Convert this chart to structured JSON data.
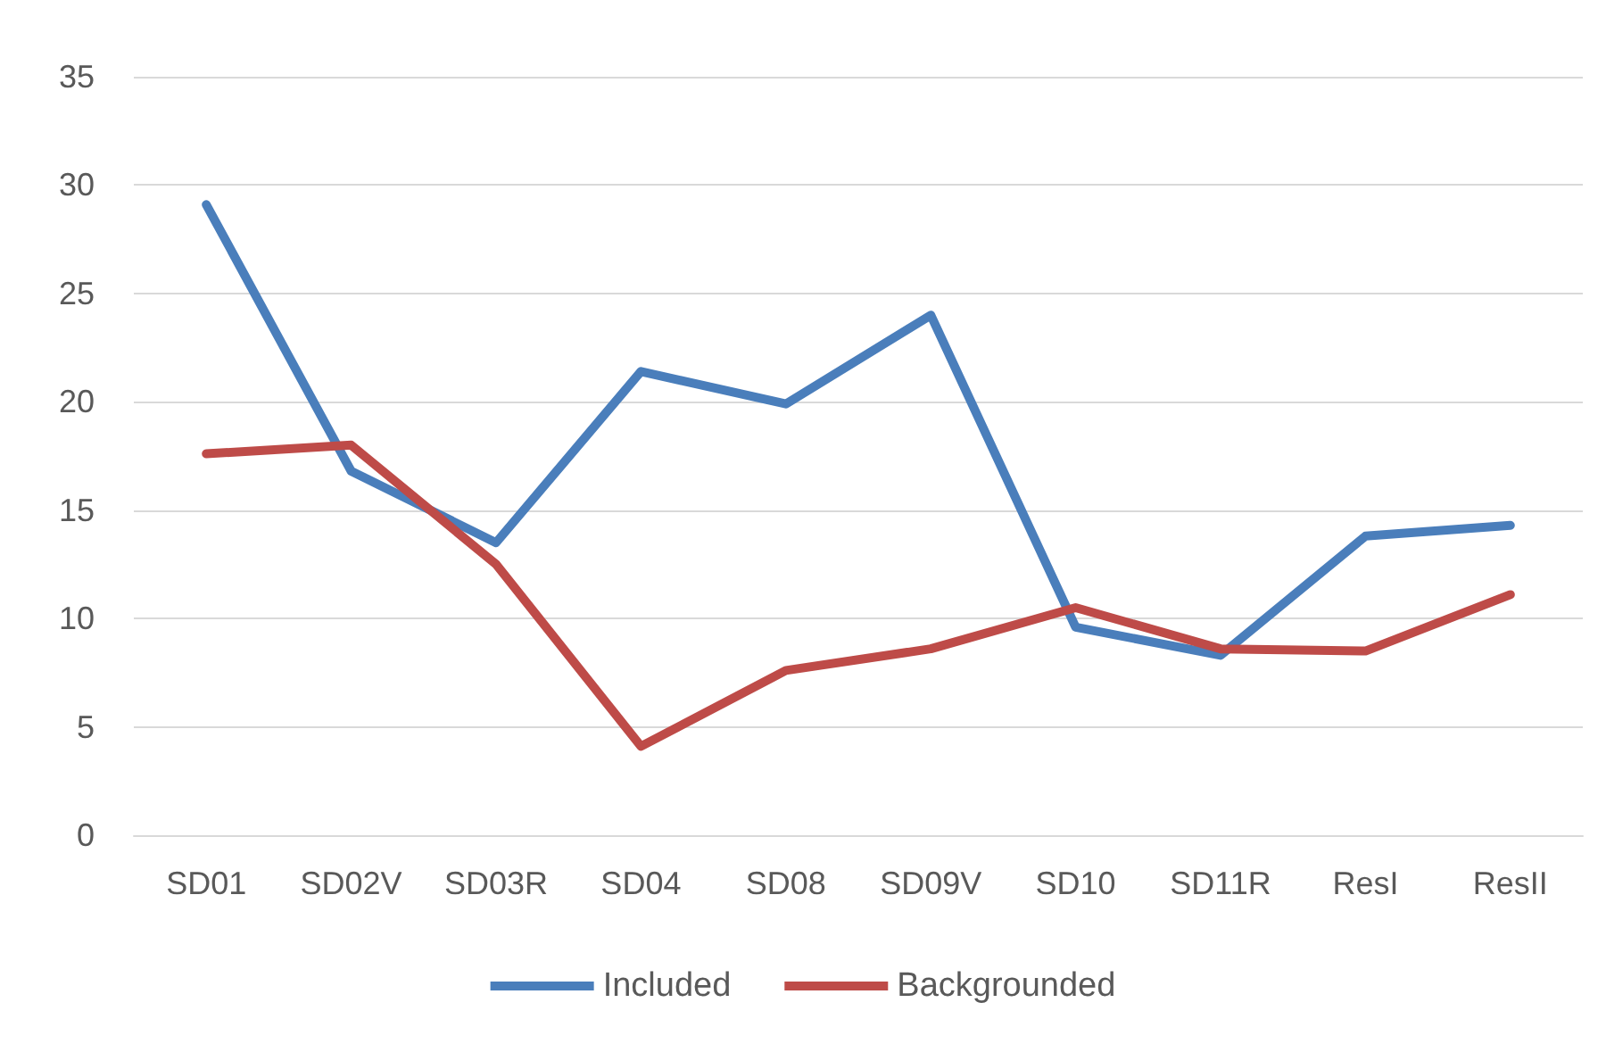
{
  "chart_data": {
    "type": "line",
    "categories": [
      "SD01",
      "SD02V",
      "SD03R",
      "SD04",
      "SD08",
      "SD09V",
      "SD10",
      "SD11R",
      "ResI",
      "ResII"
    ],
    "series": [
      {
        "name": "Included",
        "color": "#4a7ebb",
        "values": [
          29.1,
          16.8,
          13.5,
          21.4,
          19.9,
          24.0,
          9.6,
          8.3,
          13.8,
          14.3
        ]
      },
      {
        "name": "Backgrounded",
        "color": "#be4b48",
        "values": [
          17.6,
          18.0,
          12.5,
          4.1,
          7.6,
          8.6,
          10.5,
          8.6,
          8.5,
          11.1
        ]
      }
    ],
    "ylim": [
      0,
      35
    ],
    "yticks": [
      0,
      5,
      10,
      15,
      20,
      25,
      30,
      35
    ],
    "grid": "y",
    "legend": "bottom",
    "marker": "none",
    "line_style": "solid"
  }
}
